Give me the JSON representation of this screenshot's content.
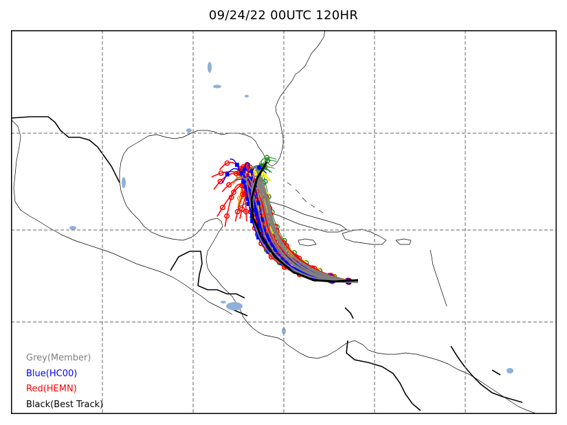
{
  "title": "09/24/22 00UTC 120HR",
  "legend": [
    {
      "label": "Grey(Member)",
      "color": "#808080"
    },
    {
      "label": "Blue(HC00)",
      "color": "#0000ff"
    },
    {
      "label": "Red(HEMN)",
      "color": "#ff0000"
    },
    {
      "label": "Black(Best Track)",
      "color": "#000000"
    }
  ],
  "colors": {
    "grid": "#808080",
    "coast": "#000000",
    "lakes": "#8fb0d8",
    "best_track": "#000000",
    "member": "#808080",
    "hc00": "#0000ff",
    "hemn": "#ff0000",
    "ensemble_yellow": "#ffee00",
    "ensemble_orange": "#f0a020",
    "ensemble_green": "#1a8a1a"
  }
}
